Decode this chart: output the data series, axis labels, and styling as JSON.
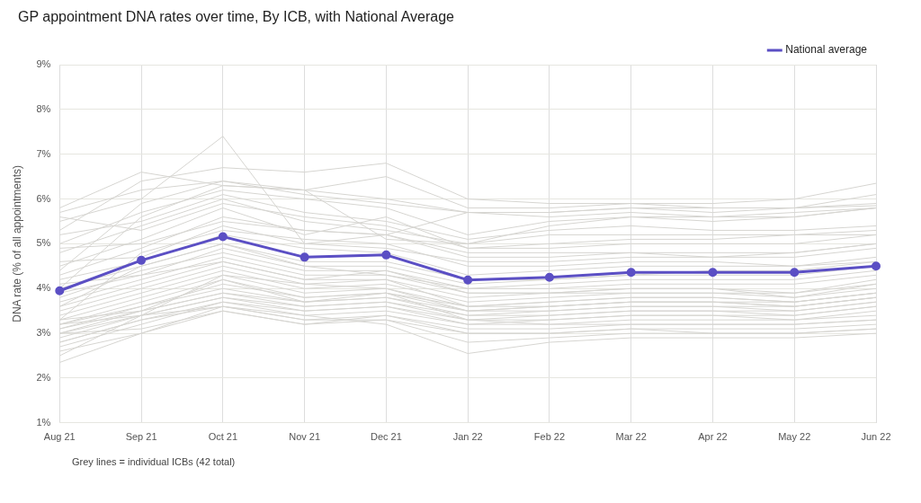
{
  "chart_data": {
    "type": "line",
    "title": "GP appointment DNA rates over time, By ICB, with National Average",
    "ylabel": "DNA rate (% of all appointments)",
    "categories": [
      "Aug 21",
      "Sep 21",
      "Oct 21",
      "Nov 21",
      "Dec 21",
      "Jan 22",
      "Feb 22",
      "Mar 22",
      "Apr 22",
      "May 22",
      "Jun 22"
    ],
    "ylim": [
      1,
      9
    ],
    "yticks": [
      {
        "value": 1,
        "label": "1%"
      },
      {
        "value": 2,
        "label": "2%"
      },
      {
        "value": 3,
        "label": "3%"
      },
      {
        "value": 4,
        "label": "4%"
      },
      {
        "value": 5,
        "label": "5%"
      },
      {
        "value": 6,
        "label": "6%"
      },
      {
        "value": 7,
        "label": "7%"
      },
      {
        "value": 8,
        "label": "8%"
      },
      {
        "value": 9,
        "label": "9%"
      }
    ],
    "grid": true,
    "legend": "top right",
    "line_style": "solid",
    "annotations": [
      "Grey lines = individual ICBs (42 total)"
    ],
    "series": [
      {
        "color": "#d6d5d1",
        "marker": "none",
        "values": [
          5.8,
          6.6,
          6.3,
          6.2,
          6.5,
          5.8,
          5.8,
          5.9,
          5.9,
          6.0,
          6.35
        ]
      },
      {
        "color": "#d6d5d1",
        "marker": "none",
        "values": [
          5.5,
          6.0,
          7.4,
          5.0,
          5.2,
          5.7,
          5.7,
          5.8,
          5.8,
          5.8,
          6.1
        ]
      },
      {
        "color": "#d6d5d1",
        "marker": "none",
        "values": [
          5.3,
          6.4,
          6.7,
          6.6,
          6.8,
          6.0,
          5.9,
          5.9,
          5.8,
          5.8,
          5.9
        ]
      },
      {
        "color": "#d6d5d1",
        "marker": "none",
        "values": [
          5.7,
          6.2,
          6.4,
          6.2,
          6.0,
          5.7,
          5.7,
          5.8,
          5.7,
          5.8,
          5.85
        ]
      },
      {
        "color": "#d6d5d1",
        "marker": "none",
        "values": [
          4.4,
          5.9,
          6.4,
          6.1,
          5.9,
          5.7,
          5.6,
          5.7,
          5.6,
          5.7,
          5.8
        ]
      },
      {
        "color": "#d6d5d1",
        "marker": "none",
        "values": [
          5.0,
          5.7,
          6.2,
          6.0,
          5.8,
          5.2,
          5.5,
          5.6,
          5.6,
          5.6,
          5.8
        ]
      },
      {
        "color": "#d6d5d1",
        "marker": "none",
        "values": [
          5.2,
          5.5,
          6.1,
          5.7,
          5.5,
          5.1,
          5.3,
          5.4,
          5.3,
          5.3,
          5.4
        ]
      },
      {
        "color": "#d6d5d1",
        "marker": "none",
        "values": [
          4.8,
          5.4,
          6.0,
          5.5,
          5.3,
          5.0,
          5.2,
          5.2,
          5.2,
          5.2,
          5.2
        ]
      },
      {
        "color": "#d6d5d1",
        "marker": "none",
        "values": [
          4.5,
          5.1,
          5.8,
          5.2,
          5.6,
          4.9,
          4.9,
          5.0,
          5.0,
          5.0,
          5.2
        ]
      },
      {
        "color": "#d6d5d1",
        "marker": "none",
        "values": [
          4.3,
          4.9,
          5.6,
          5.3,
          5.2,
          4.7,
          4.7,
          4.8,
          4.8,
          4.8,
          5.0
        ]
      },
      {
        "color": "#d6d5d1",
        "marker": "none",
        "values": [
          4.6,
          4.7,
          5.4,
          5.0,
          4.9,
          4.6,
          4.6,
          4.7,
          4.7,
          4.7,
          4.9
        ]
      },
      {
        "color": "#d6d5d1",
        "marker": "none",
        "values": [
          3.3,
          4.8,
          5.3,
          5.1,
          5.0,
          4.5,
          4.5,
          4.6,
          4.6,
          4.5,
          4.7
        ]
      },
      {
        "color": "#d6d5d1",
        "marker": "none",
        "values": [
          4.2,
          4.6,
          5.2,
          4.9,
          4.8,
          4.3,
          4.4,
          4.5,
          4.5,
          4.5,
          4.6
        ]
      },
      {
        "color": "#d6d5d1",
        "marker": "none",
        "values": [
          4.0,
          4.5,
          5.0,
          4.6,
          4.6,
          4.2,
          4.2,
          4.3,
          4.4,
          4.4,
          4.6
        ]
      },
      {
        "color": "#d6d5d1",
        "marker": "none",
        "values": [
          3.9,
          4.3,
          4.9,
          4.5,
          4.5,
          4.1,
          4.2,
          4.3,
          4.3,
          4.3,
          4.5
        ]
      },
      {
        "color": "#d6d5d1",
        "marker": "none",
        "values": [
          3.8,
          4.4,
          4.8,
          4.4,
          4.4,
          4.0,
          4.1,
          4.2,
          4.2,
          4.2,
          4.4
        ]
      },
      {
        "color": "#d6d5d1",
        "marker": "none",
        "values": [
          3.7,
          4.2,
          4.7,
          4.3,
          4.3,
          4.0,
          4.0,
          4.1,
          4.1,
          4.1,
          4.3
        ]
      },
      {
        "color": "#d6d5d1",
        "marker": "none",
        "values": [
          3.6,
          4.1,
          4.6,
          4.2,
          4.4,
          3.9,
          3.9,
          4.0,
          4.0,
          3.9,
          4.1
        ]
      },
      {
        "color": "#d6d5d1",
        "marker": "none",
        "values": [
          3.5,
          4.0,
          4.5,
          4.1,
          4.2,
          3.8,
          3.9,
          4.0,
          4.0,
          3.8,
          4.1
        ]
      },
      {
        "color": "#d6d5d1",
        "marker": "none",
        "values": [
          3.4,
          3.9,
          4.4,
          4.0,
          4.1,
          3.7,
          3.8,
          3.9,
          3.9,
          3.8,
          4.0
        ]
      },
      {
        "color": "#d6d5d1",
        "marker": "none",
        "values": [
          3.3,
          3.8,
          4.3,
          3.9,
          4.0,
          3.6,
          3.7,
          3.8,
          3.8,
          3.7,
          3.9
        ]
      },
      {
        "color": "#d6d5d1",
        "marker": "none",
        "values": [
          3.2,
          3.7,
          4.2,
          3.8,
          3.9,
          3.6,
          3.6,
          3.7,
          3.7,
          3.7,
          3.9
        ]
      },
      {
        "color": "#d6d5d1",
        "marker": "none",
        "values": [
          3.2,
          3.6,
          4.1,
          3.8,
          3.9,
          3.5,
          3.6,
          3.7,
          3.7,
          3.6,
          3.8
        ]
      },
      {
        "color": "#d6d5d1",
        "marker": "none",
        "values": [
          3.1,
          3.6,
          4.0,
          3.7,
          3.8,
          3.5,
          3.5,
          3.6,
          3.6,
          3.6,
          3.8
        ]
      },
      {
        "color": "#d6d5d1",
        "marker": "none",
        "values": [
          3.1,
          3.5,
          3.9,
          3.7,
          3.8,
          3.4,
          3.5,
          3.6,
          3.6,
          3.5,
          3.7
        ]
      },
      {
        "color": "#d6d5d1",
        "marker": "none",
        "values": [
          3.0,
          3.5,
          3.9,
          3.6,
          3.7,
          3.4,
          3.4,
          3.5,
          3.5,
          3.5,
          3.7
        ]
      },
      {
        "color": "#d6d5d1",
        "marker": "none",
        "values": [
          3.0,
          3.4,
          3.8,
          3.6,
          3.7,
          3.3,
          3.4,
          3.5,
          3.5,
          3.4,
          3.6
        ]
      },
      {
        "color": "#d6d5d1",
        "marker": "none",
        "values": [
          2.9,
          3.4,
          3.8,
          3.5,
          3.6,
          3.3,
          3.3,
          3.4,
          3.4,
          3.4,
          3.6
        ]
      },
      {
        "color": "#d6d5d1",
        "marker": "none",
        "values": [
          2.8,
          3.3,
          3.7,
          3.5,
          3.6,
          3.2,
          3.3,
          3.4,
          3.4,
          3.3,
          3.5
        ]
      },
      {
        "color": "#d6d5d1",
        "marker": "none",
        "values": [
          2.7,
          3.2,
          3.7,
          3.4,
          3.5,
          3.2,
          3.2,
          3.3,
          3.3,
          3.3,
          3.4
        ]
      },
      {
        "color": "#d6d5d1",
        "marker": "none",
        "values": [
          2.6,
          3.0,
          3.6,
          3.3,
          3.4,
          3.1,
          3.1,
          3.2,
          3.2,
          3.2,
          3.3
        ]
      },
      {
        "color": "#d6d5d1",
        "marker": "none",
        "values": [
          2.35,
          3.0,
          3.5,
          3.2,
          3.3,
          3.0,
          3.0,
          3.1,
          3.1,
          3.1,
          3.2
        ]
      },
      {
        "color": "#d6d5d1",
        "marker": "none",
        "values": [
          3.6,
          4.5,
          5.0,
          4.5,
          4.3,
          3.9,
          3.9,
          3.9,
          3.9,
          3.9,
          4.2
        ]
      },
      {
        "color": "#d6d5d1",
        "marker": "none",
        "values": [
          4.1,
          4.3,
          4.6,
          4.2,
          4.2,
          3.6,
          3.7,
          3.8,
          3.8,
          3.7,
          3.9
        ]
      },
      {
        "color": "#d6d5d1",
        "marker": "none",
        "values": [
          3.3,
          3.5,
          4.2,
          3.7,
          3.9,
          3.3,
          3.2,
          3.2,
          3.2,
          3.2,
          3.3
        ]
      },
      {
        "color": "#d6d5d1",
        "marker": "none",
        "values": [
          3.2,
          3.4,
          3.6,
          3.4,
          3.2,
          2.55,
          2.8,
          2.9,
          2.9,
          2.9,
          3.0
        ]
      },
      {
        "color": "#d6d5d1",
        "marker": "none",
        "values": [
          2.8,
          3.3,
          3.6,
          3.3,
          3.3,
          2.8,
          2.9,
          3.0,
          3.0,
          3.0,
          3.1
        ]
      },
      {
        "color": "#d6d5d1",
        "marker": "none",
        "values": [
          3.0,
          3.1,
          3.5,
          3.2,
          3.4,
          3.0,
          3.0,
          3.1,
          3.0,
          3.0,
          3.1
        ]
      },
      {
        "color": "#d6d5d1",
        "marker": "none",
        "values": [
          5.6,
          5.3,
          5.9,
          5.6,
          5.4,
          4.9,
          5.0,
          5.1,
          5.1,
          5.2,
          5.3
        ]
      },
      {
        "color": "#d6d5d1",
        "marker": "none",
        "values": [
          4.9,
          5.0,
          5.5,
          5.3,
          5.2,
          4.8,
          4.8,
          4.8,
          4.7,
          4.8,
          5.0
        ]
      },
      {
        "color": "#d6d5d1",
        "marker": "none",
        "values": [
          2.5,
          3.4,
          4.3,
          4.1,
          4.0,
          3.5,
          3.6,
          3.7,
          3.7,
          3.6,
          3.8
        ]
      },
      {
        "color": "#d6d5d1",
        "marker": "none",
        "values": [
          4.0,
          5.6,
          6.3,
          6.2,
          5.1,
          5.0,
          5.4,
          5.6,
          5.5,
          5.6,
          5.8
        ]
      },
      {
        "name": "National average",
        "color": "#5b4fc4",
        "marker": "circle",
        "values": [
          3.95,
          4.63,
          5.16,
          4.7,
          4.75,
          4.19,
          4.25,
          4.36,
          4.36,
          4.36,
          4.5
        ]
      }
    ]
  }
}
